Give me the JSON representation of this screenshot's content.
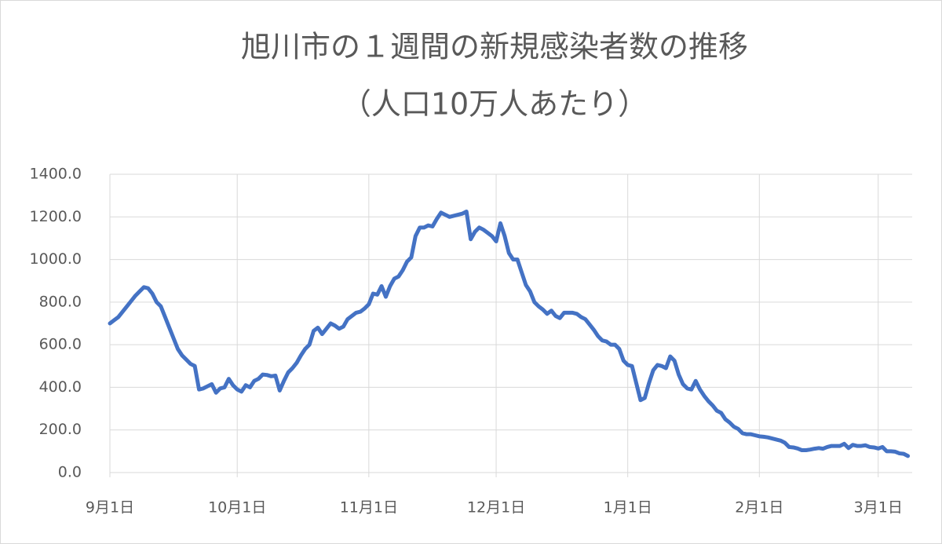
{
  "chart_data": {
    "type": "line",
    "title": "旭川市の１週間の新規感染者数の推移",
    "subtitle": "（人口10万人あたり）",
    "x": [
      0,
      1,
      2,
      3,
      4,
      5,
      6,
      7,
      8,
      9,
      10,
      11,
      12,
      13,
      14,
      15,
      16,
      17,
      18,
      19,
      20,
      21,
      22,
      23,
      24,
      25,
      26,
      27,
      28,
      29,
      30,
      31,
      32,
      33,
      34,
      35,
      36,
      37,
      38,
      39,
      40,
      41,
      42,
      43,
      44,
      45,
      46,
      47,
      48,
      49,
      50,
      51,
      52,
      53,
      54,
      55,
      56,
      57,
      58,
      59,
      60,
      61,
      62,
      63,
      64,
      65,
      66,
      67,
      68,
      69,
      70,
      71,
      72,
      73,
      74,
      75,
      76,
      77,
      78,
      79,
      80,
      81,
      82,
      83,
      84,
      85,
      86,
      87,
      88,
      89,
      90,
      91,
      92,
      93,
      94,
      95,
      96,
      97,
      98,
      99,
      100,
      101,
      102,
      103,
      104,
      105,
      106,
      107,
      108,
      109,
      110,
      111,
      112,
      113,
      114,
      115,
      116,
      117,
      118,
      119,
      120,
      121,
      122,
      123,
      124,
      125,
      126,
      127,
      128,
      129,
      130,
      131,
      132,
      133,
      134,
      135,
      136,
      137,
      138,
      139,
      140,
      141,
      142,
      143,
      144,
      145,
      146,
      147,
      148,
      149,
      150,
      151,
      152,
      153,
      154,
      155,
      156,
      157,
      158,
      159,
      160,
      161,
      162,
      163,
      164,
      165,
      166,
      167,
      168,
      169,
      170,
      171,
      172,
      173,
      174,
      175,
      176,
      177,
      178,
      179,
      180,
      181,
      182,
      183,
      184,
      185,
      186,
      187,
      188
    ],
    "values": [
      700,
      715,
      730,
      755,
      780,
      805,
      830,
      850,
      870,
      865,
      840,
      800,
      780,
      730,
      680,
      630,
      580,
      550,
      530,
      510,
      500,
      390,
      395,
      405,
      415,
      375,
      395,
      400,
      440,
      410,
      390,
      380,
      410,
      400,
      430,
      440,
      460,
      458,
      452,
      455,
      385,
      430,
      470,
      490,
      515,
      550,
      580,
      600,
      665,
      680,
      650,
      675,
      700,
      690,
      675,
      685,
      720,
      735,
      750,
      755,
      770,
      790,
      840,
      835,
      875,
      825,
      875,
      910,
      920,
      950,
      990,
      1010,
      1110,
      1150,
      1150,
      1160,
      1155,
      1190,
      1220,
      1210,
      1200,
      1205,
      1210,
      1215,
      1225,
      1095,
      1130,
      1150,
      1140,
      1125,
      1110,
      1085,
      1170,
      1110,
      1030,
      1000,
      1000,
      940,
      880,
      850,
      800,
      780,
      765,
      745,
      760,
      735,
      725,
      750,
      750,
      750,
      745,
      730,
      720,
      695,
      670,
      640,
      620,
      615,
      600,
      600,
      580,
      525,
      505,
      500,
      420,
      340,
      350,
      420,
      480,
      505,
      500,
      490,
      545,
      525,
      460,
      415,
      395,
      390,
      430,
      390,
      360,
      335,
      315,
      290,
      280,
      250,
      235,
      215,
      205,
      185,
      180,
      180,
      175,
      170,
      168,
      165,
      160,
      155,
      150,
      140,
      120,
      118,
      113,
      105,
      105,
      108,
      112,
      115,
      112,
      120,
      125,
      125,
      125,
      135,
      115,
      130,
      125,
      125,
      128,
      120,
      118,
      113,
      120,
      100,
      100,
      98,
      90,
      88,
      78
    ],
    "color": "#4472c4",
    "xlim": [
      0,
      189
    ],
    "xticks": [
      {
        "value": 0,
        "label": "9月1日"
      },
      {
        "value": 30,
        "label": "10月1日"
      },
      {
        "value": 61,
        "label": "11月1日"
      },
      {
        "value": 91,
        "label": "12月1日"
      },
      {
        "value": 122,
        "label": "1月1日"
      },
      {
        "value": 153,
        "label": "2月1日"
      },
      {
        "value": 181,
        "label": "3月1日"
      }
    ],
    "ylim": [
      0,
      1400
    ],
    "yticks": [
      {
        "value": 0,
        "label": "0.0"
      },
      {
        "value": 200,
        "label": "200.0"
      },
      {
        "value": 400,
        "label": "400.0"
      },
      {
        "value": 600,
        "label": "600.0"
      },
      {
        "value": 800,
        "label": "800.0"
      },
      {
        "value": 1000,
        "label": "1000.0"
      },
      {
        "value": 1200,
        "label": "1200.0"
      },
      {
        "value": 1400,
        "label": "1400.0"
      }
    ],
    "grid": true
  }
}
